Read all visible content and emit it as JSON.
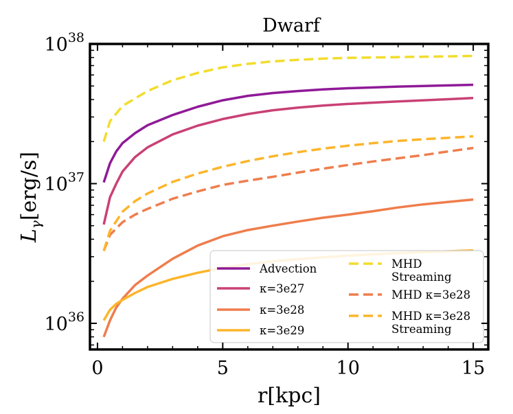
{
  "chart_data": {
    "type": "line",
    "title": "Dwarf",
    "xlabel": "r[kpc]",
    "ylabel": "L_γ[erg/s]",
    "ylabel_main": "L",
    "ylabel_sub": "γ",
    "ylabel_unit": "[erg/s]",
    "xlim": [
      -0.3,
      15.6
    ],
    "ylim": [
      6.5e+35,
      1e+38
    ],
    "yscale": "log",
    "grid": false,
    "legend_position": "lower-right",
    "x_ticks": [
      {
        "value": 0,
        "label": "0"
      },
      {
        "value": 5,
        "label": "5"
      },
      {
        "value": 10,
        "label": "10"
      },
      {
        "value": 15,
        "label": "15"
      }
    ],
    "y_ticks": [
      {
        "value": 1e+36,
        "base": "10",
        "exp": "36"
      },
      {
        "value": 1e+37,
        "base": "10",
        "exp": "37"
      },
      {
        "value": 1e+38,
        "base": "10",
        "exp": "38"
      }
    ],
    "series": [
      {
        "name": "Advection",
        "color": "#8f1a97",
        "dash": "solid",
        "x": [
          0.25,
          0.5,
          0.75,
          1,
          1.5,
          2,
          3,
          4,
          5,
          6,
          7,
          8,
          9,
          10,
          11,
          12,
          13,
          14,
          15
        ],
        "y": [
          1.02e+37,
          1.4e+37,
          1.7e+37,
          1.95e+37,
          2.3e+37,
          2.62e+37,
          3.1e+37,
          3.55e+37,
          3.95e+37,
          4.25e+37,
          4.45e+37,
          4.6e+37,
          4.72e+37,
          4.82e+37,
          4.88e+37,
          4.95e+37,
          5e+37,
          5.05e+37,
          5.1e+37
        ]
      },
      {
        "name": "κ=3e27",
        "color": "#c94175",
        "dash": "solid",
        "x": [
          0.25,
          0.5,
          0.75,
          1,
          1.5,
          2,
          3,
          4,
          5,
          6,
          7,
          8,
          9,
          10,
          11,
          12,
          13,
          14,
          15
        ],
        "y": [
          5.1e+36,
          8e+36,
          1e+37,
          1.22e+37,
          1.55e+37,
          1.82e+37,
          2.25e+37,
          2.6e+37,
          2.9e+37,
          3.15e+37,
          3.35e+37,
          3.5e+37,
          3.62e+37,
          3.72e+37,
          3.8e+37,
          3.88e+37,
          3.95e+37,
          4.02e+37,
          4.1e+37
        ]
      },
      {
        "name": "κ=3e28",
        "color": "#ef7d4c",
        "dash": "solid",
        "x": [
          0.25,
          0.5,
          0.75,
          1,
          1.5,
          2,
          3,
          4,
          5,
          6,
          7,
          8,
          9,
          10,
          11,
          12,
          13,
          14,
          15
        ],
        "y": [
          8e+35,
          1.05e+36,
          1.3e+36,
          1.5e+36,
          1.88e+36,
          2.2e+36,
          2.9e+36,
          3.6e+36,
          4.2e+36,
          4.65e+36,
          5e+36,
          5.35e+36,
          5.7e+36,
          6e+36,
          6.35e+36,
          6.75e+36,
          7.1e+36,
          7.4e+36,
          7.7e+36
        ]
      },
      {
        "name": "κ=3e29",
        "color": "#fcb52a",
        "dash": "solid",
        "x": [
          0.25,
          0.5,
          0.75,
          1,
          1.5,
          2,
          3,
          4,
          5,
          6,
          7,
          8,
          9,
          10,
          11,
          12,
          13,
          14,
          15
        ],
        "y": [
          1.05e+36,
          1.25e+36,
          1.38e+36,
          1.47e+36,
          1.65e+36,
          1.82e+36,
          2.08e+36,
          2.3e+36,
          2.5e+36,
          2.65e+36,
          2.78e+36,
          2.88e+36,
          2.97e+36,
          3.05e+36,
          3.12e+36,
          3.18e+36,
          3.23e+36,
          3.28e+36,
          3.33e+36
        ]
      },
      {
        "name": "MHD Streaming",
        "color": "#f2dc2d",
        "dash": "dashed",
        "x": [
          0.25,
          0.5,
          1,
          2,
          3,
          4,
          5,
          6,
          7,
          8,
          9,
          10,
          11,
          12,
          13,
          14,
          15
        ],
        "y": [
          2e+37,
          2.8e+37,
          3.6e+37,
          4.6e+37,
          5.5e+37,
          6.2e+37,
          6.8e+37,
          7.2e+37,
          7.5e+37,
          7.7e+37,
          7.85e+37,
          7.95e+37,
          8e+37,
          8.05e+37,
          8.1e+37,
          8.15e+37,
          8.2e+37
        ]
      },
      {
        "name": "MHD κ=3e28",
        "color": "#ef7d4c",
        "dash": "dashed",
        "x": [
          0.25,
          0.5,
          1,
          1.5,
          2,
          3,
          4,
          5,
          6,
          7,
          8,
          9,
          10,
          11,
          12,
          13,
          14,
          15
        ],
        "y": [
          3.3e+36,
          4.3e+36,
          5.3e+36,
          6e+36,
          6.6e+36,
          7.8e+36,
          8.8e+36,
          9.8e+36,
          1.05e+37,
          1.12e+37,
          1.2e+37,
          1.28e+37,
          1.36e+37,
          1.44e+37,
          1.52e+37,
          1.6e+37,
          1.7e+37,
          1.8e+37
        ]
      },
      {
        "name": "MHD κ=3e28 Streaming",
        "color": "#fcb52a",
        "dash": "dashed",
        "x": [
          0.25,
          0.5,
          1,
          1.5,
          2,
          3,
          4,
          5,
          6,
          7,
          8,
          9,
          10,
          11,
          12,
          13,
          14,
          15
        ],
        "y": [
          3.3e+36,
          4.6e+36,
          6.3e+36,
          7.5e+36,
          8.5e+36,
          1.03e+37,
          1.18e+37,
          1.32e+37,
          1.45e+37,
          1.57e+37,
          1.68e+37,
          1.78e+37,
          1.87e+37,
          1.95e+37,
          2.02e+37,
          2.08e+37,
          2.13e+37,
          2.18e+37
        ]
      }
    ],
    "legend": {
      "columns": [
        [
          {
            "series": 0,
            "lines": [
              "Advection"
            ]
          },
          {
            "series": 1,
            "lines": [
              "κ=3e27"
            ]
          },
          {
            "series": 2,
            "lines": [
              "κ=3e28"
            ]
          },
          {
            "series": 3,
            "lines": [
              "κ=3e29"
            ]
          }
        ],
        [
          {
            "series": 4,
            "lines": [
              "MHD",
              "Streaming"
            ]
          },
          {
            "series": 5,
            "lines": [
              "MHD κ=3e28"
            ]
          },
          {
            "series": 6,
            "lines": [
              "MHD κ=3e28",
              "Streaming"
            ]
          }
        ]
      ]
    }
  }
}
